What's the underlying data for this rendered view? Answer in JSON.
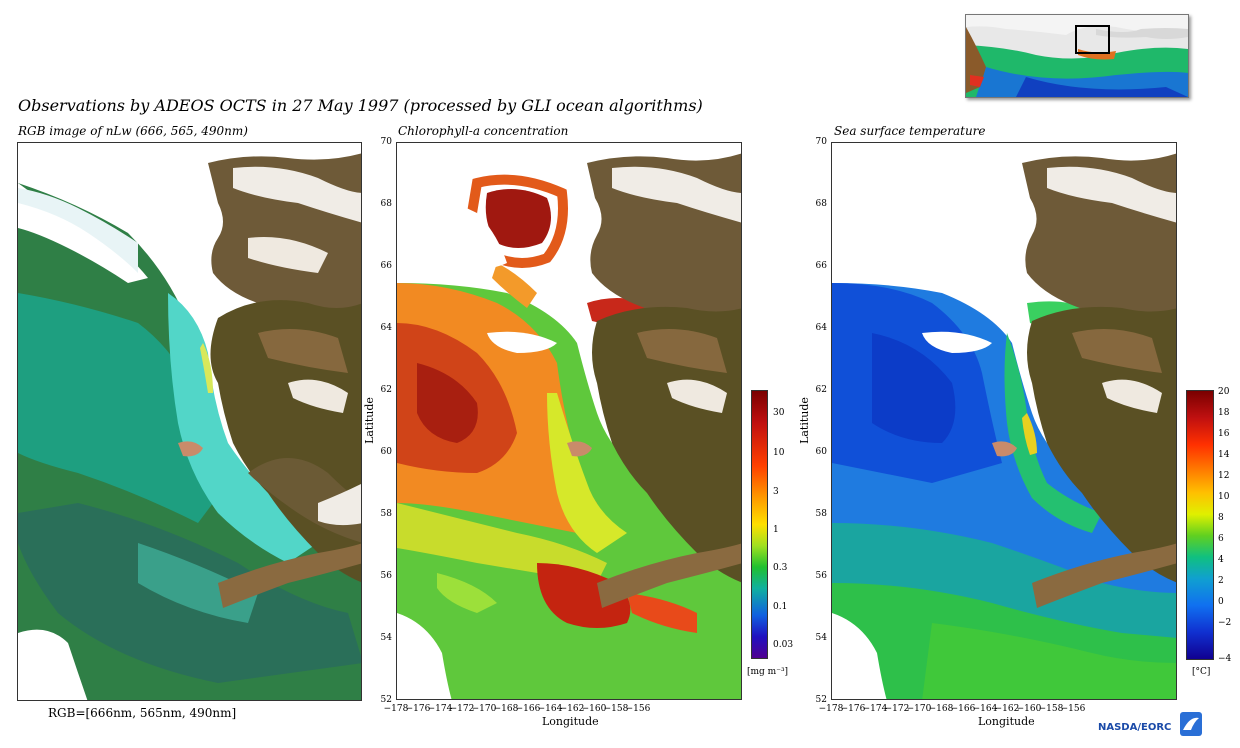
{
  "title": "Observations by ADEOS OCTS in 27 May 1997  (processed by GLI ocean algorithms)",
  "panels": {
    "rgb": {
      "caption": "RGB image of nLw (666, 565, 490nm)",
      "footer": "RGB=[666nm, 565nm, 490nm]"
    },
    "chl": {
      "caption": "Chlorophyll-a concentration",
      "xlabel": "Longitude",
      "ylabel": "Latitude",
      "colorbar": {
        "ticks": [
          "30",
          "10",
          "3",
          "1",
          "0.3",
          "0.1",
          "0.03"
        ],
        "unit": "[mg m⁻³]"
      }
    },
    "sst": {
      "caption": "Sea surface temperature",
      "xlabel": "Longitude",
      "ylabel": "Latitude",
      "colorbar": {
        "ticks": [
          "20",
          "18",
          "16",
          "14",
          "12",
          "10",
          "8",
          "6",
          "4",
          "2",
          "0",
          "−2",
          "−4"
        ],
        "unit": "[°C]"
      }
    }
  },
  "axes": {
    "lat_ticks": [
      "70",
      "68",
      "66",
      "64",
      "62",
      "60",
      "58",
      "56",
      "54",
      "52"
    ],
    "lon_ticks": [
      "−178",
      "−176",
      "−174",
      "−172",
      "−170",
      "−168",
      "−166",
      "−164",
      "−162",
      "−160",
      "−158",
      "−156"
    ]
  },
  "logo": "NASDA/EORC"
}
